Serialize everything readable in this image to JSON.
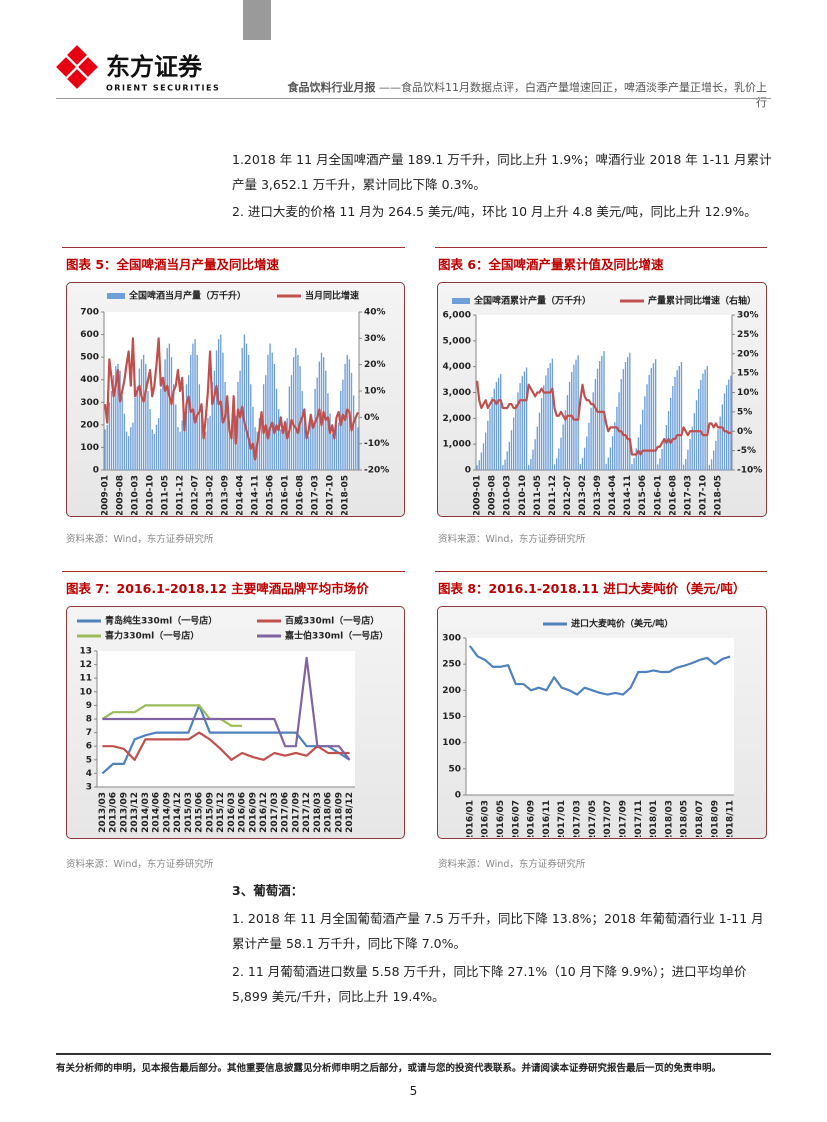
{
  "header": {
    "logo_cn": "东方证券",
    "logo_en": "ORIENT SECURITIES",
    "report_type": "食品饮料行业月报",
    "report_title": " ——食品饮料11月数据点评，白酒产量增速回正，啤酒淡季产量正增长，乳价上行"
  },
  "paragraphs": [
    "1.2018 年 11 月全国啤酒产量 189.1 万千升，同比上升 1.9%；啤酒行业 2018 年 1-11 月累计产量 3,652.1 万千升，累计同比下降 0.3%。",
    "2. 进口大麦的价格 11 月为 264.5 美元/吨，环比 10 月上升 4.8 美元/吨，同比上升 12.9%。"
  ],
  "section": {
    "title": "3、葡萄酒：",
    "paragraphs": [
      "1. 2018 年 11 月全国葡萄酒产量 7.5 万千升，同比下降 13.8%；2018 年葡萄酒行业 1-11 月累计产量 58.1 万千升，同比下降 7.0%。",
      "2. 11 月葡萄酒进口数量 5.58 万千升，同比下降 27.1%（10 月下降 9.9%）；进口平均单价 5,899 美元/千升，同比上升 19.4%。"
    ]
  },
  "footer": {
    "disclaimer": "有关分析师的申明，见本报告最后部分。其他重要信息披露见分析师申明之后部分，或请与您的投资代表联系。并请阅读本证券研究报告最后一页的免责申明。",
    "page_number": "5"
  },
  "chart_data": [
    {
      "type": "combo",
      "title": "图表 5：全国啤酒当月产量及同比增速",
      "note": "资料来源：Wind，东方证券研究所",
      "categories": [
        "2009-01",
        null,
        null,
        null,
        null,
        null,
        null,
        "2009-08",
        null,
        null,
        null,
        null,
        null,
        null,
        "2010-03",
        null,
        null,
        null,
        null,
        null,
        null,
        "2010-10",
        null,
        null,
        null,
        null,
        null,
        null,
        "2011-05",
        null,
        null,
        null,
        null,
        null,
        null,
        "2011-12",
        null,
        null,
        null,
        null,
        null,
        null,
        "2012-07",
        null,
        null,
        null,
        null,
        null,
        null,
        "2013-02",
        null,
        null,
        null,
        null,
        null,
        null,
        "2013-09",
        null,
        null,
        null,
        null,
        null,
        null,
        "2014-04",
        null,
        null,
        null,
        null,
        null,
        null,
        "2014-11",
        null,
        null,
        null,
        null,
        null,
        null,
        "2015-06",
        null,
        null,
        null,
        null,
        null,
        null,
        "2016-01",
        null,
        null,
        null,
        null,
        null,
        null,
        "2016-08",
        null,
        null,
        null,
        null,
        null,
        null,
        "2017-03",
        null,
        null,
        null,
        null,
        null,
        null,
        "2017-10",
        null,
        null,
        null,
        null,
        null,
        null,
        "2018-05",
        null,
        null,
        null,
        null,
        null,
        null
      ],
      "series": [
        {
          "name": "全国啤酒当月产量（万千升）",
          "type": "bar",
          "color": "#6f9fd8",
          "values": [
            180,
            200,
            300,
            350,
            420,
            460,
            470,
            440,
            330,
            250,
            170,
            150,
            190,
            210,
            320,
            370,
            450,
            490,
            510,
            470,
            350,
            270,
            180,
            160,
            200,
            230,
            360,
            400,
            490,
            540,
            560,
            500,
            380,
            290,
            190,
            170,
            220,
            230,
            380,
            420,
            510,
            560,
            580,
            510,
            380,
            290,
            190,
            170,
            230,
            240,
            390,
            440,
            530,
            580,
            600,
            520,
            390,
            300,
            200,
            180,
            240,
            240,
            390,
            440,
            540,
            600,
            560,
            510,
            380,
            280,
            190,
            170,
            230,
            230,
            380,
            420,
            510,
            560,
            520,
            470,
            360,
            270,
            180,
            160,
            220,
            230,
            370,
            420,
            500,
            540,
            510,
            460,
            350,
            260,
            170,
            150,
            210,
            220,
            360,
            410,
            480,
            520,
            500,
            440,
            340,
            250,
            160,
            140,
            200,
            210,
            350,
            400,
            470,
            510,
            490,
            430,
            330,
            240,
            189.1
          ]
        },
        {
          "name": "当月同比增速",
          "type": "line",
          "axis": "y2",
          "color": "#c0504d",
          "values": [
            5,
            -2,
            22,
            15,
            8,
            12,
            18,
            6,
            10,
            14,
            20,
            25,
            12,
            30,
            8,
            10,
            12,
            8,
            6,
            10,
            14,
            18,
            8,
            12,
            20,
            30,
            12,
            15,
            10,
            12,
            8,
            5,
            10,
            12,
            18,
            10,
            15,
            -5,
            5,
            8,
            2,
            3,
            -2,
            1,
            2,
            5,
            -8,
            0,
            10,
            25,
            5,
            8,
            12,
            5,
            6,
            -2,
            0,
            8,
            -5,
            -8,
            8,
            -10,
            3,
            0,
            4,
            -2,
            -5,
            -8,
            -12,
            -10,
            -16,
            -10,
            -5,
            2,
            -6,
            -3,
            -8,
            -4,
            -2,
            -6,
            -3,
            -5,
            0,
            -6,
            -2,
            -8,
            -5,
            -1,
            -3,
            -4,
            -6,
            -2,
            0,
            3,
            -8,
            -5,
            1,
            -4,
            -2,
            0,
            3,
            -3,
            2,
            -1,
            0,
            -6,
            -3,
            -8,
            0,
            2,
            -3,
            1,
            -1,
            3,
            2,
            -5,
            -2,
            0,
            1.9
          ]
        }
      ],
      "ylim": [
        0,
        700
      ],
      "yticks": [
        0,
        100,
        200,
        300,
        400,
        500,
        600,
        700
      ],
      "y2lim": [
        -20,
        40
      ],
      "y2ticks": [
        {
          "value": -20,
          "label": "-20%"
        },
        {
          "value": -10,
          "label": "-10%"
        },
        {
          "value": 0,
          "label": "0%"
        },
        {
          "value": 10,
          "label": "10%"
        },
        {
          "value": 20,
          "label": "20%"
        },
        {
          "value": 30,
          "label": "30%"
        },
        {
          "value": 40,
          "label": "40%"
        }
      ]
    },
    {
      "type": "combo",
      "title": "图表 6：全国啤酒产量累计值及同比增速",
      "note": "资料来源：Wind，东方证券研究所",
      "categories": [
        "2009-01",
        null,
        null,
        null,
        null,
        null,
        null,
        "2009-08",
        null,
        null,
        null,
        null,
        null,
        null,
        "2010-03",
        null,
        null,
        null,
        null,
        null,
        null,
        "2010-10",
        null,
        null,
        null,
        null,
        null,
        null,
        "2011-05",
        null,
        null,
        null,
        null,
        null,
        null,
        "2011-12",
        null,
        null,
        null,
        null,
        null,
        null,
        "2012-07",
        null,
        null,
        null,
        null,
        null,
        null,
        "2013-02",
        null,
        null,
        null,
        null,
        null,
        null,
        "2013-09",
        null,
        null,
        null,
        null,
        null,
        null,
        "2014-04",
        null,
        null,
        null,
        null,
        null,
        null,
        "2014-11",
        null,
        null,
        null,
        null,
        null,
        null,
        "2015-06",
        null,
        null,
        null,
        null,
        null,
        null,
        "2016-01",
        null,
        null,
        null,
        null,
        null,
        null,
        "2016-08",
        null,
        null,
        null,
        null,
        null,
        null,
        "2017-03",
        null,
        null,
        null,
        null,
        null,
        null,
        "2017-10",
        null,
        null,
        null,
        null,
        null,
        null,
        "2018-05",
        null,
        null,
        null,
        null,
        null,
        null
      ],
      "series": [
        {
          "name": "全国啤酒累计产量（万千升）",
          "type": "bar",
          "color": "#6f9fd8",
          "values": [
            180,
            380,
            680,
            1030,
            1450,
            1910,
            2380,
            2820,
            3150,
            3400,
            3570,
            3720,
            190,
            400,
            720,
            1090,
            1540,
            2030,
            2540,
            3010,
            3360,
            3630,
            3810,
            3970,
            200,
            430,
            790,
            1190,
            1680,
            2220,
            2780,
            3280,
            3660,
            3950,
            4140,
            4310,
            220,
            450,
            830,
            1250,
            1760,
            2320,
            2900,
            3410,
            3790,
            4080,
            4270,
            4440,
            230,
            470,
            860,
            1300,
            1830,
            2410,
            3010,
            3530,
            3920,
            4220,
            4420,
            4600,
            240,
            480,
            870,
            1310,
            1850,
            2450,
            3010,
            3520,
            3900,
            4180,
            4370,
            4540,
            230,
            460,
            840,
            1260,
            1770,
            2330,
            2850,
            3320,
            3680,
            3950,
            4130,
            4290,
            220,
            450,
            820,
            1240,
            1740,
            2280,
            2790,
            3250,
            3600,
            3860,
            4030,
            4180,
            210,
            430,
            790,
            1200,
            1680,
            2200,
            2700,
            3140,
            3480,
            3730,
            3890,
            4030,
            200,
            410,
            750,
            1130,
            1580,
            2070,
            2540,
            2960,
            3280,
            3500,
            3652.1
          ]
        },
        {
          "name": "产量累计同比增速（右轴）",
          "type": "line",
          "axis": "y2",
          "color": "#c0504d",
          "values": [
            13,
            8,
            6,
            7,
            8,
            6,
            7,
            8,
            8,
            7,
            8,
            8,
            6,
            6,
            6,
            7,
            7,
            6,
            6,
            7,
            8,
            8,
            8,
            8,
            12,
            11,
            10,
            9,
            10,
            10,
            11,
            10,
            10,
            10,
            10,
            11,
            6,
            4,
            4,
            5,
            4,
            3,
            4,
            4,
            4,
            3,
            3,
            3,
            8,
            12,
            9,
            8,
            8,
            7,
            7,
            6,
            5,
            5,
            5,
            5,
            2,
            0,
            1,
            1,
            1,
            1,
            0,
            0,
            -1,
            -1,
            -2,
            -2,
            -6,
            -6,
            -6,
            -5,
            -6,
            -5,
            -5,
            -5,
            -5,
            -5,
            -5,
            -5,
            -4,
            -4,
            -3,
            -2,
            -3,
            -2,
            -3,
            -2,
            -2,
            -1,
            -1,
            -1,
            1,
            0,
            -1,
            0,
            0,
            0,
            0,
            0,
            0,
            -1,
            -1,
            -1,
            2,
            2,
            1,
            2,
            1,
            1,
            1,
            0,
            0,
            -0.5,
            -0.3
          ]
        }
      ],
      "ylim": [
        0,
        6000
      ],
      "yticks": [
        0,
        {
          "value": 1000,
          "label": "1,000"
        },
        {
          "value": 2000,
          "label": "2,000"
        },
        {
          "value": 3000,
          "label": "3,000"
        },
        {
          "value": 4000,
          "label": "4,000"
        },
        {
          "value": 5000,
          "label": "5,000"
        },
        {
          "value": 6000,
          "label": "6,000"
        }
      ],
      "y2lim": [
        -10,
        30
      ],
      "y2ticks": [
        {
          "value": -10,
          "label": "-10%"
        },
        {
          "value": -5,
          "label": "-5%"
        },
        {
          "value": 0,
          "label": "0%"
        },
        {
          "value": 5,
          "label": "5%"
        },
        {
          "value": 10,
          "label": "10%"
        },
        {
          "value": 15,
          "label": "15%"
        },
        {
          "value": 20,
          "label": "20%"
        },
        {
          "value": 25,
          "label": "25%"
        },
        {
          "value": 30,
          "label": "30%"
        }
      ]
    },
    {
      "type": "line",
      "title": "图表 7：2016.1-2018.12 主要啤酒品牌平均市场价",
      "note": "资料来源：Wind，东方证券研究所",
      "categories": [
        "2013/03",
        "2013/06",
        "2013/09",
        "2013/12",
        "2014/03",
        "2014/06",
        "2014/09",
        "2014/12",
        "2015/03",
        "2015/06",
        "2015/09",
        "2015/12",
        "2016/03",
        "2016/06",
        "2016/09",
        "2016/12",
        "2017/03",
        "2017/06",
        "2017/09",
        "2017/12",
        "2018/03",
        "2018/06",
        "2018/09",
        "2018/12"
      ],
      "series": [
        {
          "name": "青岛纯生330ml（一号店）",
          "color": "#4f81bd",
          "values": [
            4,
            4.7,
            4.7,
            6.5,
            6.8,
            7,
            7,
            7,
            7,
            9,
            7,
            7,
            7,
            7,
            7,
            7,
            7,
            7,
            7,
            6,
            6,
            6,
            5.5,
            5
          ]
        },
        {
          "name": "百威330ml（一号店）",
          "color": "#c0504d",
          "values": [
            6,
            6,
            5.8,
            5,
            6.5,
            6.5,
            6.5,
            6.5,
            6.5,
            7,
            6.5,
            5.8,
            5,
            5.5,
            5.2,
            5,
            5.5,
            5.3,
            5.5,
            5.3,
            6,
            5.5,
            5.5,
            5.5
          ]
        },
        {
          "name": "喜力330ml（一号店）",
          "color": "#9bbb59",
          "values": [
            8,
            8.5,
            8.5,
            8.5,
            9,
            9,
            9,
            9,
            9,
            9,
            8,
            8,
            7.5,
            7.5,
            null,
            null,
            null,
            null,
            null,
            null,
            null,
            null,
            null,
            null
          ]
        },
        {
          "name": "嘉士伯330ml（一号店）",
          "color": "#8064a2",
          "values": [
            8,
            8,
            8,
            8,
            8,
            8,
            8,
            8,
            8,
            8,
            8,
            8,
            8,
            8,
            8,
            8,
            8,
            6,
            6,
            12.5,
            6,
            6,
            6,
            5
          ]
        }
      ],
      "ylim": [
        3,
        13
      ],
      "yticks": [
        3,
        4,
        5,
        6,
        7,
        8,
        9,
        10,
        11,
        12,
        13
      ]
    },
    {
      "type": "line",
      "title": "图表 8：2016.1-2018.11 进口大麦吨价（美元/吨）",
      "note": "资料来源：Wind，东方证券研究所",
      "categories": [
        "2016/01",
        null,
        "2016/03",
        null,
        "2016/05",
        null,
        "2016/07",
        null,
        "2016/09",
        null,
        "2016/11",
        null,
        "2017/01",
        null,
        "2017/03",
        null,
        "2017/05",
        null,
        "2017/07",
        null,
        "2017/09",
        null,
        "2017/11",
        null,
        "2018/01",
        null,
        "2018/03",
        null,
        "2018/05",
        null,
        "2018/07",
        null,
        "2018/09",
        null,
        "2018/11"
      ],
      "series": [
        {
          "name": "进口大麦吨价（美元/吨）",
          "color": "#4f81bd",
          "values": [
            285,
            265,
            258,
            245,
            245,
            248,
            212,
            212,
            200,
            205,
            200,
            225,
            205,
            200,
            192,
            205,
            200,
            195,
            192,
            195,
            192,
            205,
            235,
            235,
            238,
            235,
            235,
            243,
            247,
            252,
            258,
            262,
            250,
            260,
            264.5
          ]
        }
      ],
      "ylim": [
        0,
        300
      ],
      "yticks": [
        0,
        50,
        100,
        150,
        200,
        250,
        300
      ]
    }
  ]
}
